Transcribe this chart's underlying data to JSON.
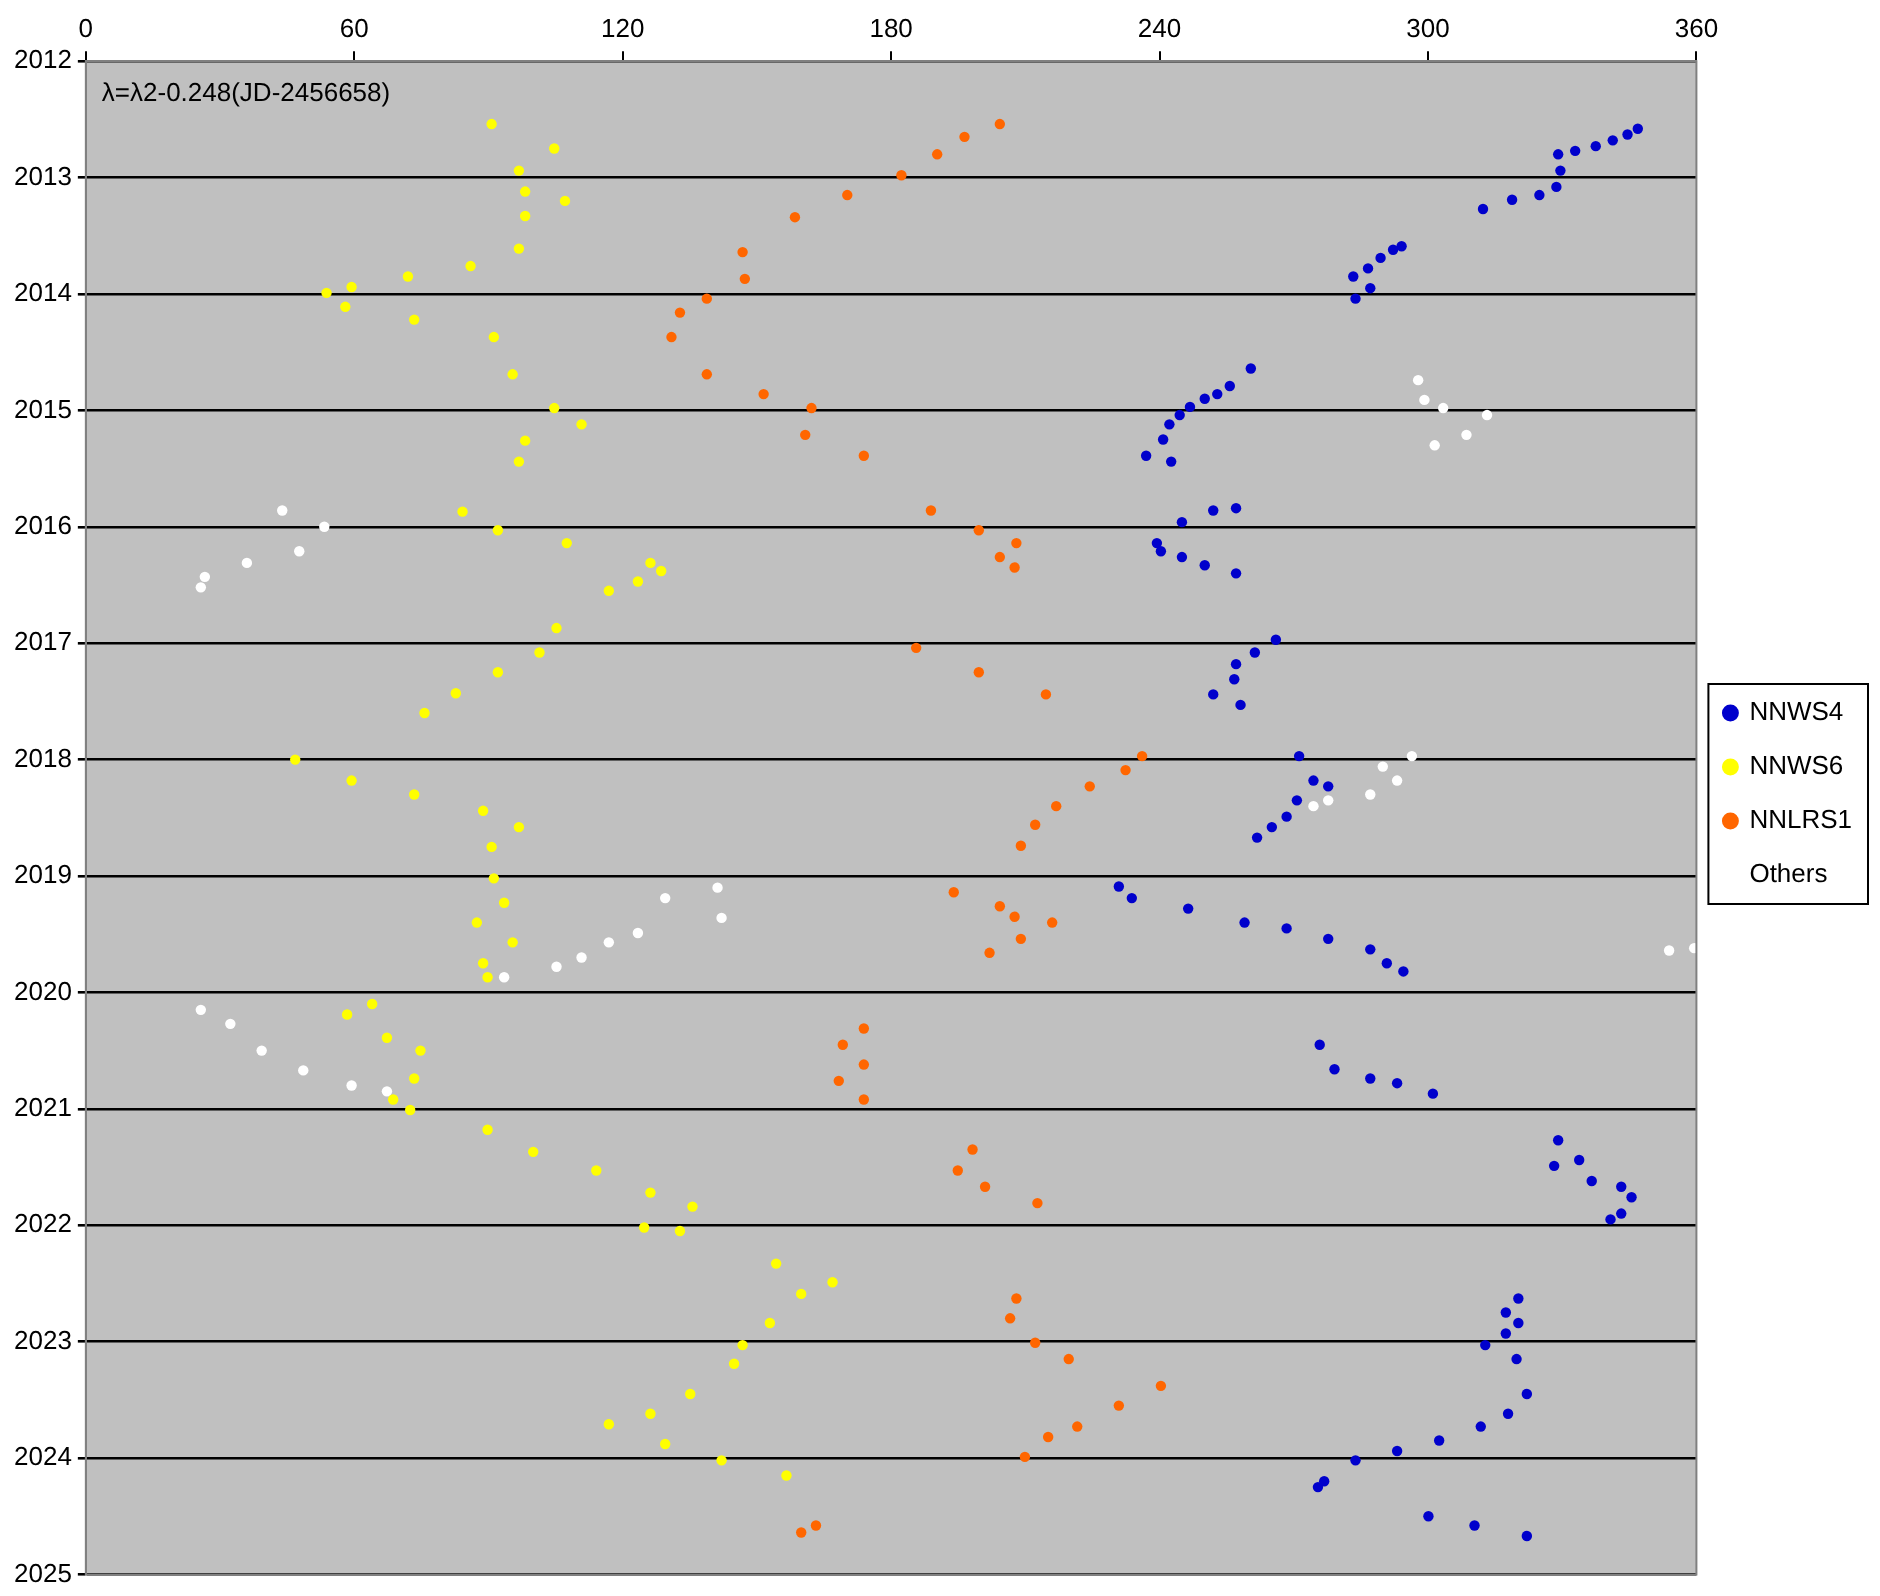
{
  "chart_data": {
    "type": "scatter",
    "annotations": [
      "λ=λ2-0.248(JD-2456658)"
    ],
    "xlim": [
      0,
      360
    ],
    "xticks": [
      0,
      60,
      120,
      180,
      240,
      300,
      360
    ],
    "ylim": [
      2025,
      2012
    ],
    "yticks": [
      2012,
      2013,
      2014,
      2015,
      2016,
      2017,
      2018,
      2019,
      2020,
      2021,
      2022,
      2023,
      2024,
      2025
    ],
    "grid": "y",
    "legend": "right",
    "marker": "circle",
    "series": [
      {
        "name": "NNWS4",
        "color": "#0000cc",
        "x": [
          312.3,
          318.8,
          324.9,
          328.7,
          329.6,
          329.1,
          332.9,
          337.5,
          341.3,
          344.6,
          346.9,
          283.8,
          283.3,
          286.6,
          287.1,
          289.4,
          292.2,
          294.1,
          237.0,
          240.8,
          242.2,
          244.5,
          246.8,
          250.1,
          252.9,
          255.7,
          260.4,
          242.6,
          252.0,
          257.1,
          245.0,
          239.4,
          240.3,
          245.0,
          250.1,
          257.1,
          266.0,
          261.3,
          257.1,
          256.7,
          252.0,
          258.1,
          271.2,
          274.4,
          277.7,
          270.7,
          268.4,
          265.1,
          261.8,
          230.9,
          233.8,
          246.4,
          259.0,
          268.4,
          277.7,
          287.1,
          290.8,
          294.5,
          275.8,
          279.1,
          287.1,
          293.1,
          301.1,
          329.1,
          328.2,
          333.8,
          336.6,
          343.2,
          345.5,
          343.2,
          340.8,
          320.2,
          317.4,
          320.2,
          317.4,
          312.8,
          319.8,
          322.1,
          317.9,
          311.8,
          302.5,
          293.1,
          283.8,
          276.8,
          275.4,
          300.1,
          310.4,
          322.1
        ],
        "values": [
          2013.27,
          2013.19,
          2013.15,
          2013.08,
          2012.94,
          2012.8,
          2012.77,
          2012.73,
          2012.68,
          2012.63,
          2012.58,
          2014.04,
          2013.85,
          2013.78,
          2013.95,
          2013.69,
          2013.62,
          2013.59,
          2015.39,
          2015.25,
          2015.12,
          2015.04,
          2014.97,
          2014.9,
          2014.86,
          2014.79,
          2014.64,
          2015.44,
          2015.86,
          2015.84,
          2015.96,
          2016.14,
          2016.21,
          2016.26,
          2016.33,
          2016.4,
          2016.97,
          2017.08,
          2017.18,
          2017.31,
          2017.44,
          2017.53,
          2017.97,
          2018.18,
          2018.23,
          2018.35,
          2018.49,
          2018.58,
          2018.67,
          2019.09,
          2019.19,
          2019.28,
          2019.4,
          2019.45,
          2019.54,
          2019.63,
          2019.75,
          2019.82,
          2020.45,
          2020.66,
          2020.74,
          2020.78,
          2020.87,
          2021.27,
          2021.49,
          2021.44,
          2021.62,
          2021.67,
          2021.76,
          2021.9,
          2021.95,
          2022.63,
          2022.75,
          2022.84,
          2022.93,
          2023.03,
          2023.15,
          2023.45,
          2023.62,
          2023.73,
          2023.85,
          2023.94,
          2024.02,
          2024.2,
          2024.25,
          2024.5,
          2024.58,
          2024.67
        ]
      },
      {
        "name": "NNWS6",
        "color": "#ffff00",
        "x": [
          90.7,
          104.7,
          96.8,
          98.2,
          107.1,
          98.2,
          96.8,
          86.0,
          72.0,
          59.4,
          53.8,
          58.0,
          73.4,
          91.2,
          95.4,
          104.7,
          110.8,
          98.2,
          96.8,
          84.2,
          92.1,
          107.5,
          126.2,
          128.6,
          123.4,
          116.9,
          105.2,
          101.4,
          92.1,
          82.7,
          75.7,
          46.8,
          59.4,
          73.4,
          88.8,
          96.8,
          90.7,
          91.2,
          93.5,
          87.4,
          95.4,
          88.8,
          89.8,
          64.0,
          58.4,
          67.3,
          74.8,
          73.4,
          68.7,
          72.5,
          89.8,
          100.0,
          114.1,
          126.2,
          135.6,
          124.8,
          132.8,
          154.3,
          166.9,
          159.9,
          152.9,
          146.8,
          144.9,
          135.1,
          126.2,
          116.9,
          129.5,
          142.1,
          156.6
        ],
        "values": [
          2012.54,
          2012.75,
          2012.94,
          2013.12,
          2013.2,
          2013.33,
          2013.61,
          2013.76,
          2013.85,
          2013.94,
          2013.99,
          2014.11,
          2014.22,
          2014.37,
          2014.69,
          2014.98,
          2015.12,
          2015.26,
          2015.44,
          2015.87,
          2016.03,
          2016.14,
          2016.31,
          2016.38,
          2016.47,
          2016.55,
          2016.87,
          2017.08,
          2017.25,
          2017.43,
          2017.6,
          2018.0,
          2018.18,
          2018.3,
          2018.44,
          2018.58,
          2018.75,
          2019.02,
          2019.23,
          2019.4,
          2019.57,
          2019.75,
          2019.87,
          2020.1,
          2020.19,
          2020.39,
          2020.5,
          2020.74,
          2020.92,
          2021.01,
          2021.18,
          2021.37,
          2021.53,
          2021.72,
          2021.84,
          2022.02,
          2022.05,
          2022.33,
          2022.49,
          2022.59,
          2022.84,
          2023.03,
          2023.19,
          2023.45,
          2023.62,
          2023.71,
          2023.88,
          2024.02,
          2024.15
        ]
      },
      {
        "name": "NNLRS1",
        "color": "#ff6600",
        "x": [
          158.5,
          170.2,
          182.3,
          190.3,
          196.4,
          204.3,
          146.8,
          147.3,
          138.8,
          132.8,
          130.9,
          138.8,
          151.5,
          162.2,
          160.8,
          173.9,
          188.9,
          199.6,
          208.0,
          204.3,
          207.6,
          185.6,
          199.6,
          214.6,
          236.1,
          232.4,
          224.4,
          216.9,
          212.2,
          209.0,
          194.0,
          204.3,
          207.6,
          216.0,
          209.0,
          202.0,
          173.9,
          169.2,
          173.9,
          168.3,
          173.9,
          198.2,
          194.9,
          201.0,
          212.7,
          208.0,
          206.6,
          212.2,
          219.7,
          240.3,
          230.9,
          221.6,
          215.1,
          209.9,
          159.9,
          163.2
        ],
        "values": [
          2013.34,
          2013.15,
          2012.98,
          2012.8,
          2012.65,
          2012.54,
          2013.64,
          2013.87,
          2014.04,
          2014.16,
          2014.37,
          2014.69,
          2014.86,
          2014.98,
          2015.21,
          2015.39,
          2015.86,
          2016.03,
          2016.14,
          2016.26,
          2016.35,
          2017.04,
          2017.25,
          2017.44,
          2017.97,
          2018.09,
          2018.23,
          2018.4,
          2018.56,
          2018.74,
          2019.14,
          2019.26,
          2019.35,
          2019.4,
          2019.54,
          2019.66,
          2020.31,
          2020.45,
          2020.62,
          2020.76,
          2020.92,
          2021.35,
          2021.53,
          2021.67,
          2021.81,
          2022.63,
          2022.8,
          2023.01,
          2023.15,
          2023.38,
          2023.55,
          2023.73,
          2023.82,
          2023.99,
          2024.64,
          2024.58
        ]
      },
      {
        "name": "Others",
        "color": "#ffffff",
        "x": [
          43.9,
          53.3,
          47.7,
          36.0,
          26.6,
          25.7,
          297.8,
          299.2,
          303.4,
          313.2,
          308.6,
          301.5,
          296.4,
          289.9,
          293.1,
          287.1,
          277.7,
          274.4,
          141.2,
          142.1,
          129.5,
          123.4,
          116.9,
          110.8,
          105.2,
          93.5,
          353.9,
          359.5,
          25.7,
          32.3,
          39.3,
          48.6,
          59.4,
          67.3
        ],
        "values": [
          2015.86,
          2016.0,
          2016.21,
          2016.31,
          2016.43,
          2016.52,
          2014.74,
          2014.91,
          2014.98,
          2015.04,
          2015.21,
          2015.3,
          2017.97,
          2018.06,
          2018.18,
          2018.3,
          2018.35,
          2018.4,
          2019.1,
          2019.36,
          2019.19,
          2019.49,
          2019.57,
          2019.7,
          2019.78,
          2019.87,
          2019.64,
          2019.62,
          2020.15,
          2020.27,
          2020.5,
          2020.67,
          2020.8,
          2020.85
        ]
      }
    ]
  }
}
